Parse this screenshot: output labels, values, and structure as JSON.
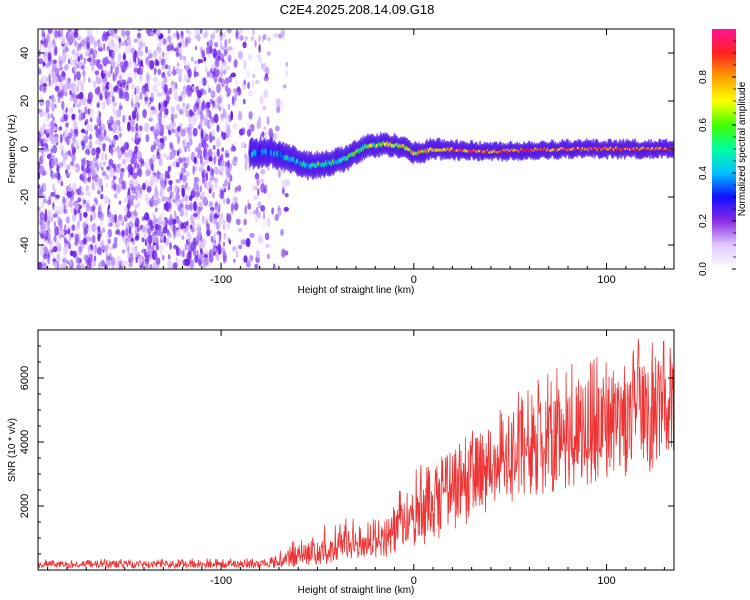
{
  "title": "C2E4.2025.208.14.09.G18",
  "chart_data": [
    {
      "type": "heatmap",
      "xlabel": "Height of straight line (km)",
      "ylabel": "Frequency (Hz)",
      "xlim": [
        -195,
        135
      ],
      "ylim": [
        -50,
        50
      ],
      "xticks": [
        -100,
        0,
        100
      ],
      "xtick_labels": [
        "-100",
        "0",
        "100"
      ],
      "yticks": [
        -40,
        -20,
        0,
        20,
        40
      ],
      "ytick_labels": [
        "-40",
        "-20",
        "0",
        "20",
        "40"
      ],
      "colorbar": {
        "label": "Normalized spectral amplitude",
        "range": [
          0,
          1
        ],
        "ticks": [
          0.0,
          0.2,
          0.4,
          0.6,
          0.8
        ],
        "tick_labels": [
          "0.0",
          "0.2",
          "0.4",
          "0.6",
          "0.8"
        ],
        "colormap": [
          "#ffffff",
          "#d9b8ff",
          "#8a2be2",
          "#0000ff",
          "#00ffff",
          "#00ff00",
          "#ffff00",
          "#ffa500",
          "#ff0000",
          "#ff1493"
        ]
      },
      "signal_center_hz": [
        {
          "x": -85,
          "y": -2
        },
        {
          "x": -75,
          "y": -1
        },
        {
          "x": -65,
          "y": -4
        },
        {
          "x": -55,
          "y": -7
        },
        {
          "x": -45,
          "y": -6
        },
        {
          "x": -35,
          "y": -4
        },
        {
          "x": -25,
          "y": 1
        },
        {
          "x": -15,
          "y": 2
        },
        {
          "x": -5,
          "y": 1
        },
        {
          "x": 0,
          "y": -2
        },
        {
          "x": 10,
          "y": 0
        },
        {
          "x": 40,
          "y": -1
        },
        {
          "x": 80,
          "y": 0
        },
        {
          "x": 135,
          "y": 0
        }
      ],
      "signal_start_x": -85
    },
    {
      "type": "line",
      "xlabel": "Height of straight line (km)",
      "ylabel": "SNR (10 * v/v)",
      "xlim": [
        -195,
        135
      ],
      "ylim": [
        0,
        7500
      ],
      "xticks": [
        -100,
        0,
        100
      ],
      "xtick_labels": [
        "-100",
        "0",
        "100"
      ],
      "yticks": [
        2000,
        4000,
        6000
      ],
      "ytick_labels": [
        "2000",
        "4000",
        "6000"
      ],
      "series": [
        {
          "color": "#ee3333",
          "envelope": [
            {
              "x": -195,
              "low": 50,
              "mean": 180,
              "high": 330
            },
            {
              "x": -80,
              "low": 50,
              "mean": 190,
              "high": 380
            },
            {
              "x": -70,
              "low": 60,
              "mean": 300,
              "high": 700
            },
            {
              "x": -50,
              "low": 150,
              "mean": 650,
              "high": 1400
            },
            {
              "x": -30,
              "low": 300,
              "mean": 900,
              "high": 1700
            },
            {
              "x": -10,
              "low": 400,
              "mean": 1200,
              "high": 2300
            },
            {
              "x": 0,
              "low": 600,
              "mean": 1900,
              "high": 3200
            },
            {
              "x": 20,
              "low": 1200,
              "mean": 2600,
              "high": 3800
            },
            {
              "x": 40,
              "low": 1800,
              "mean": 3300,
              "high": 5000
            },
            {
              "x": 60,
              "low": 2200,
              "mean": 3900,
              "high": 6000
            },
            {
              "x": 80,
              "low": 2500,
              "mean": 4300,
              "high": 6600
            },
            {
              "x": 100,
              "low": 2800,
              "mean": 4700,
              "high": 7000
            },
            {
              "x": 120,
              "low": 3000,
              "mean": 5000,
              "high": 7300
            },
            {
              "x": 135,
              "low": 3100,
              "mean": 5100,
              "high": 7100
            }
          ]
        }
      ]
    }
  ]
}
